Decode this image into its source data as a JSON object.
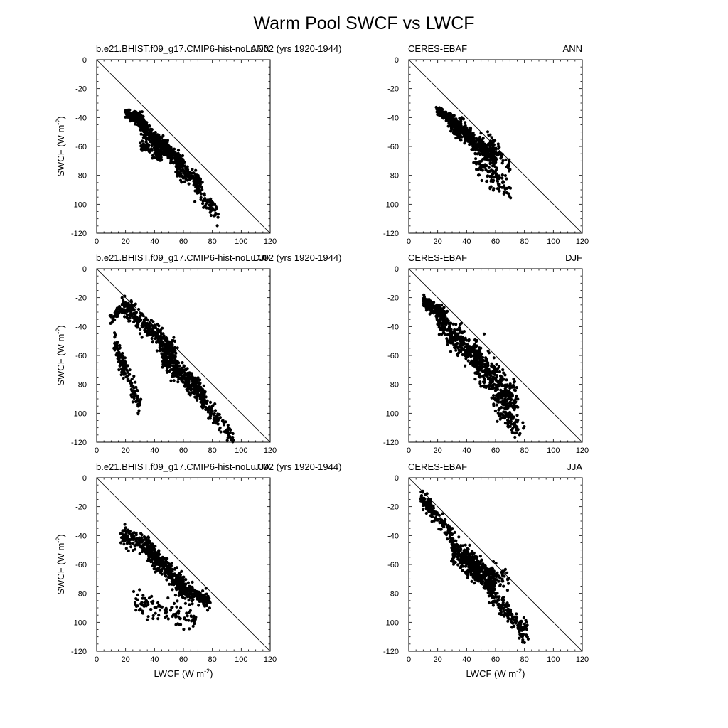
{
  "figure_title": "Warm Pool SWCF vs LWCF",
  "axis_labels": {
    "x": "LWCF (W m",
    "y": "SWCF (W m",
    "unit_exponent": "-2"
  },
  "chart_data": [
    {
      "type": "scatter",
      "panel": "model-ann",
      "left_label": "b.e21.BHIST.f09_g17.CMIP6-hist-noLu.002 (yrs 1920-1944)",
      "right_label": "ANN",
      "xlim": [
        0,
        120
      ],
      "ylim": [
        -120,
        0
      ],
      "xticks": [
        "0",
        "20",
        "40",
        "60",
        "80",
        "100",
        "120"
      ],
      "yticks": [
        "0",
        "-20",
        "-40",
        "-60",
        "-80",
        "-100",
        "-120"
      ],
      "reference_line": "1:1 (SWCF = -LWCF)",
      "point_cloud": [
        {
          "x": [
            20,
            32
          ],
          "y_at_x": [
            -37,
            -42
          ],
          "spread": 4,
          "n": 160
        },
        {
          "x": [
            30,
            60
          ],
          "y_at_x": [
            -45,
            -72
          ],
          "spread": 6,
          "n": 420
        },
        {
          "x": [
            30,
            45
          ],
          "y_at_x": [
            -58,
            -66
          ],
          "spread": 5,
          "n": 90
        },
        {
          "x": [
            55,
            72
          ],
          "y_at_x": [
            -75,
            -85
          ],
          "spread": 6,
          "n": 140
        },
        {
          "x": [
            68,
            85
          ],
          "y_at_x": [
            -88,
            -108
          ],
          "spread": 8,
          "n": 70
        }
      ]
    },
    {
      "type": "scatter",
      "panel": "obs-ann",
      "left_label": "CERES-EBAF",
      "right_label": "ANN",
      "xlim": [
        0,
        120
      ],
      "ylim": [
        -120,
        0
      ],
      "xticks": [
        "0",
        "20",
        "40",
        "60",
        "80",
        "100",
        "120"
      ],
      "yticks": [
        "0",
        "-20",
        "-40",
        "-60",
        "-80",
        "-100",
        "-120"
      ],
      "reference_line": "1:1 (SWCF = -LWCF)",
      "point_cloud": [
        {
          "x": [
            20,
            30
          ],
          "y_at_x": [
            -35,
            -42
          ],
          "spread": 3,
          "n": 150
        },
        {
          "x": [
            28,
            60
          ],
          "y_at_x": [
            -42,
            -68
          ],
          "spread": 7,
          "n": 480
        },
        {
          "x": [
            45,
            70
          ],
          "y_at_x": [
            -70,
            -90
          ],
          "spread": 9,
          "n": 110
        },
        {
          "x": [
            55,
            70
          ],
          "y_at_x": [
            -55,
            -75
          ],
          "spread": 7,
          "n": 60
        }
      ]
    },
    {
      "type": "scatter",
      "panel": "model-djf",
      "left_label": "b.e21.BHIST.f09_g17.CMIP6-hist-noLu.002 (yrs 1920-1944)",
      "right_label": "DJF",
      "xlim": [
        0,
        120
      ],
      "ylim": [
        -120,
        0
      ],
      "xticks": [
        "0",
        "20",
        "40",
        "60",
        "80",
        "100",
        "120"
      ],
      "yticks": [
        "0",
        "-20",
        "-40",
        "-60",
        "-80",
        "-100",
        "-120"
      ],
      "reference_line": "1:1 (SWCF = -LWCF)",
      "point_cloud": [
        {
          "x": [
            10,
            20
          ],
          "y_at_x": [
            -35,
            -25
          ],
          "spread": 4,
          "n": 60
        },
        {
          "x": [
            18,
            55
          ],
          "y_at_x": [
            -25,
            -58
          ],
          "spread": 8,
          "n": 300
        },
        {
          "x": [
            12,
            30
          ],
          "y_at_x": [
            -50,
            -95
          ],
          "spread": 9,
          "n": 150
        },
        {
          "x": [
            45,
            75
          ],
          "y_at_x": [
            -60,
            -88
          ],
          "spread": 8,
          "n": 360
        },
        {
          "x": [
            70,
            95
          ],
          "y_at_x": [
            -88,
            -118
          ],
          "spread": 7,
          "n": 100
        }
      ]
    },
    {
      "type": "scatter",
      "panel": "obs-djf",
      "left_label": "CERES-EBAF",
      "right_label": "DJF",
      "xlim": [
        0,
        120
      ],
      "ylim": [
        -120,
        0
      ],
      "xticks": [
        "0",
        "20",
        "40",
        "60",
        "80",
        "100",
        "120"
      ],
      "yticks": [
        "0",
        "-20",
        "-40",
        "-60",
        "-80",
        "-100",
        "-120"
      ],
      "reference_line": "1:1 (SWCF = -LWCF)",
      "point_cloud": [
        {
          "x": [
            10,
            25
          ],
          "y_at_x": [
            -22,
            -32
          ],
          "spread": 5,
          "n": 180
        },
        {
          "x": [
            20,
            50
          ],
          "y_at_x": [
            -35,
            -65
          ],
          "spread": 10,
          "n": 320
        },
        {
          "x": [
            45,
            75
          ],
          "y_at_x": [
            -60,
            -95
          ],
          "spread": 14,
          "n": 360
        },
        {
          "x": [
            60,
            80
          ],
          "y_at_x": [
            -95,
            -115
          ],
          "spread": 8,
          "n": 80
        }
      ]
    },
    {
      "type": "scatter",
      "panel": "model-jja",
      "left_label": "b.e21.BHIST.f09_g17.CMIP6-hist-noLu.002 (yrs 1920-1944)",
      "right_label": "JJA",
      "xlim": [
        0,
        120
      ],
      "ylim": [
        -120,
        0
      ],
      "xticks": [
        "0",
        "20",
        "40",
        "60",
        "80",
        "100",
        "120"
      ],
      "yticks": [
        "0",
        "-20",
        "-40",
        "-60",
        "-80",
        "-100",
        "-120"
      ],
      "reference_line": "1:1 (SWCF = -LWCF)",
      "point_cloud": [
        {
          "x": [
            17,
            40
          ],
          "y_at_x": [
            -38,
            -50
          ],
          "spread": 7,
          "n": 180
        },
        {
          "x": [
            35,
            60
          ],
          "y_at_x": [
            -50,
            -75
          ],
          "spread": 8,
          "n": 320
        },
        {
          "x": [
            55,
            78
          ],
          "y_at_x": [
            -75,
            -85
          ],
          "spread": 6,
          "n": 200
        },
        {
          "x": [
            25,
            70
          ],
          "y_at_x": [
            -85,
            -98
          ],
          "spread": 9,
          "n": 110
        }
      ]
    },
    {
      "type": "scatter",
      "panel": "obs-jja",
      "left_label": "CERES-EBAF",
      "right_label": "JJA",
      "xlim": [
        0,
        120
      ],
      "ylim": [
        -120,
        0
      ],
      "xticks": [
        "0",
        "20",
        "40",
        "60",
        "80",
        "100",
        "120"
      ],
      "yticks": [
        "0",
        "-20",
        "-40",
        "-60",
        "-80",
        "-100",
        "-120"
      ],
      "reference_line": "1:1 (SWCF = -LWCF)",
      "point_cloud": [
        {
          "x": [
            8,
            30
          ],
          "y_at_x": [
            -12,
            -40
          ],
          "spread": 6,
          "n": 160
        },
        {
          "x": [
            30,
            60
          ],
          "y_at_x": [
            -48,
            -75
          ],
          "spread": 10,
          "n": 420
        },
        {
          "x": [
            55,
            82
          ],
          "y_at_x": [
            -78,
            -108
          ],
          "spread": 7,
          "n": 160
        },
        {
          "x": [
            40,
            70
          ],
          "y_at_x": [
            -60,
            -70
          ],
          "spread": 8,
          "n": 80
        }
      ]
    }
  ]
}
